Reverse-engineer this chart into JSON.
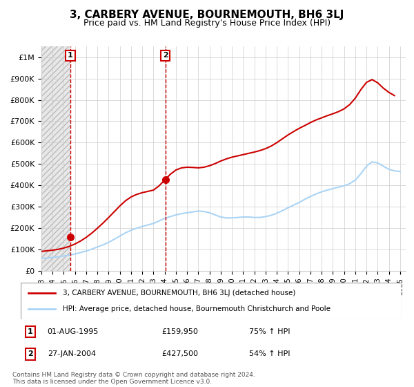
{
  "title": "3, CARBERY AVENUE, BOURNEMOUTH, BH6 3LJ",
  "subtitle": "Price paid vs. HM Land Registry's House Price Index (HPI)",
  "footer": "Contains HM Land Registry data © Crown copyright and database right 2024.\nThis data is licensed under the Open Government Licence v3.0.",
  "legend_line1": "3, CARBERY AVENUE, BOURNEMOUTH, BH6 3LJ (detached house)",
  "legend_line2": "HPI: Average price, detached house, Bournemouth Christchurch and Poole",
  "transaction1_label": "1",
  "transaction1_date": "01-AUG-1995",
  "transaction1_price": "£159,950",
  "transaction1_hpi": "75% ↑ HPI",
  "transaction1_x": 1995.58,
  "transaction1_y": 159950,
  "transaction2_label": "2",
  "transaction2_date": "27-JAN-2004",
  "transaction2_price": "£427,500",
  "transaction2_hpi": "54% ↑ HPI",
  "transaction2_x": 2004.07,
  "transaction2_y": 427500,
  "hpi_color": "#aad4f5",
  "price_color": "#cc0000",
  "marker_color": "#cc0000",
  "dashed_line_color": "#cc0000",
  "ylim_min": 0,
  "ylim_max": 1050000,
  "xlim_min": 1993,
  "xlim_max": 2025.5,
  "yticks": [
    0,
    100000,
    200000,
    300000,
    400000,
    500000,
    600000,
    700000,
    800000,
    900000,
    1000000
  ],
  "ytick_labels": [
    "£0",
    "£100K",
    "£200K",
    "£300K",
    "£400K",
    "£500K",
    "£600K",
    "£700K",
    "£800K",
    "£900K",
    "£1M"
  ],
  "xticks": [
    1993,
    1994,
    1995,
    1996,
    1997,
    1998,
    1999,
    2000,
    2001,
    2002,
    2003,
    2004,
    2005,
    2006,
    2007,
    2008,
    2009,
    2010,
    2011,
    2012,
    2013,
    2014,
    2015,
    2016,
    2017,
    2018,
    2019,
    2020,
    2021,
    2022,
    2023,
    2024,
    2025
  ],
  "hpi_x": [
    1993,
    1993.5,
    1994,
    1994.5,
    1995,
    1995.5,
    1996,
    1996.5,
    1997,
    1997.5,
    1998,
    1998.5,
    1999,
    1999.5,
    2000,
    2000.5,
    2001,
    2001.5,
    2002,
    2002.5,
    2003,
    2003.5,
    2004,
    2004.5,
    2005,
    2005.5,
    2006,
    2006.5,
    2007,
    2007.5,
    2008,
    2008.5,
    2009,
    2009.5,
    2010,
    2010.5,
    2011,
    2011.5,
    2012,
    2012.5,
    2013,
    2013.5,
    2014,
    2014.5,
    2015,
    2015.5,
    2016,
    2016.5,
    2017,
    2017.5,
    2018,
    2018.5,
    2019,
    2019.5,
    2020,
    2020.5,
    2021,
    2021.5,
    2022,
    2022.5,
    2023,
    2023.5,
    2024,
    2024.5,
    2025
  ],
  "hpi_y": [
    58000,
    60000,
    63000,
    66000,
    70000,
    74000,
    79000,
    86000,
    93000,
    102000,
    112000,
    122000,
    134000,
    148000,
    163000,
    178000,
    190000,
    200000,
    208000,
    215000,
    222000,
    234000,
    246000,
    254000,
    262000,
    268000,
    272000,
    276000,
    280000,
    278000,
    272000,
    262000,
    252000,
    248000,
    248000,
    250000,
    252000,
    252000,
    250000,
    250000,
    254000,
    260000,
    270000,
    282000,
    295000,
    308000,
    320000,
    335000,
    348000,
    360000,
    370000,
    378000,
    385000,
    392000,
    398000,
    408000,
    425000,
    455000,
    490000,
    510000,
    505000,
    490000,
    475000,
    468000,
    465000
  ],
  "price_x": [
    1993.0,
    1993.5,
    1994.0,
    1994.5,
    1995.0,
    1995.5,
    1996.0,
    1996.5,
    1997.0,
    1997.5,
    1998.0,
    1998.5,
    1999.0,
    1999.5,
    2000.0,
    2000.5,
    2001.0,
    2001.5,
    2002.0,
    2002.5,
    2003.0,
    2003.5,
    2004.0,
    2004.5,
    2005.0,
    2005.5,
    2006.0,
    2006.5,
    2007.0,
    2007.5,
    2008.0,
    2008.5,
    2009.0,
    2009.5,
    2010.0,
    2010.5,
    2011.0,
    2011.5,
    2012.0,
    2012.5,
    2013.0,
    2013.5,
    2014.0,
    2014.5,
    2015.0,
    2015.5,
    2016.0,
    2016.5,
    2017.0,
    2017.5,
    2018.0,
    2018.5,
    2019.0,
    2019.5,
    2020.0,
    2020.5,
    2021.0,
    2021.5,
    2022.0,
    2022.5,
    2023.0,
    2023.5,
    2024.0,
    2024.5
  ],
  "price_y": [
    91000,
    94000,
    97000,
    101000,
    107000,
    115000,
    126000,
    140000,
    157000,
    177000,
    200000,
    224000,
    250000,
    277000,
    304000,
    328000,
    346000,
    358000,
    366000,
    372000,
    378000,
    398000,
    425000,
    452000,
    472000,
    482000,
    485000,
    484000,
    482000,
    485000,
    492000,
    502000,
    514000,
    524000,
    532000,
    538000,
    544000,
    550000,
    556000,
    563000,
    572000,
    584000,
    600000,
    618000,
    636000,
    652000,
    667000,
    680000,
    694000,
    706000,
    716000,
    726000,
    735000,
    745000,
    758000,
    778000,
    808000,
    848000,
    882000,
    895000,
    880000,
    855000,
    835000,
    820000
  ]
}
